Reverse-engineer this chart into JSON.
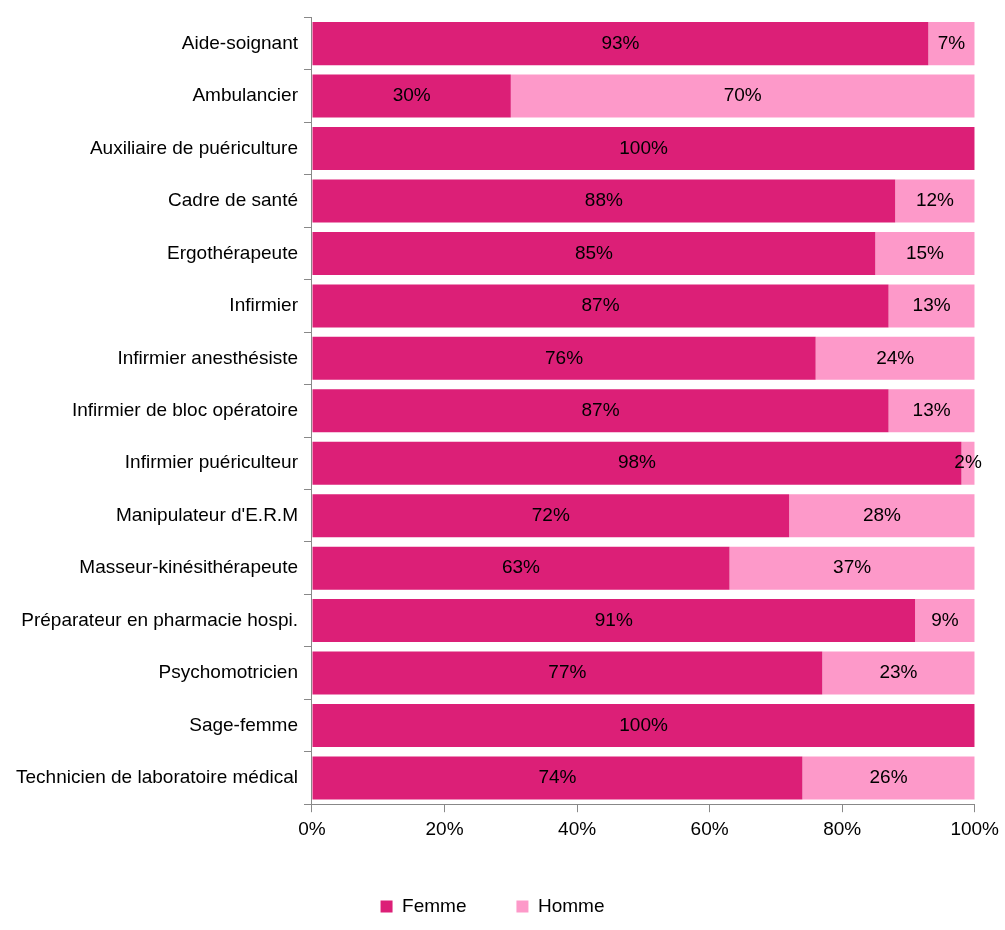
{
  "chart_data": {
    "type": "bar",
    "orientation": "horizontal",
    "stacked": true,
    "categories": [
      "Aide-soignant",
      "Ambulancier",
      "Auxiliaire de puériculture",
      "Cadre de santé",
      "Ergothérapeute",
      "Infirmier",
      "Infirmier anesthésiste",
      "Infirmier de bloc opératoire",
      "Infirmier puériculteur",
      "Manipulateur d'E.R.M",
      "Masseur-kinésithérapeute",
      "Préparateur en pharmacie hospi.",
      "Psychomotricien",
      "Sage-femme",
      "Technicien de laboratoire médical"
    ],
    "series": [
      {
        "name": "Femme",
        "color": "#dc1f77",
        "values": [
          93,
          30,
          100,
          88,
          85,
          87,
          76,
          87,
          98,
          72,
          63,
          91,
          77,
          100,
          74
        ],
        "value_labels": [
          "93%",
          "30%",
          "100%",
          "88%",
          "85%",
          "87%",
          "76%",
          "87%",
          "98%",
          "72%",
          "63%",
          "91%",
          "77%",
          "100%",
          "74%"
        ]
      },
      {
        "name": "Homme",
        "color": "#fd99c9",
        "values": [
          7,
          70,
          0,
          12,
          15,
          13,
          24,
          13,
          2,
          28,
          37,
          9,
          23,
          0,
          26
        ],
        "value_labels": [
          "7%",
          "70%",
          null,
          "12%",
          "15%",
          "13%",
          "24%",
          "13%",
          "2%",
          "28%",
          "37%",
          "9%",
          "23%",
          null,
          "26%"
        ]
      }
    ],
    "xlim": [
      0,
      100
    ],
    "xticks": [
      {
        "value": 0,
        "label": "0%"
      },
      {
        "value": 20,
        "label": "20%"
      },
      {
        "value": 40,
        "label": "40%"
      },
      {
        "value": 60,
        "label": "60%"
      },
      {
        "value": 80,
        "label": "80%"
      },
      {
        "value": 100,
        "label": "100%"
      }
    ],
    "legend": "bottom"
  }
}
